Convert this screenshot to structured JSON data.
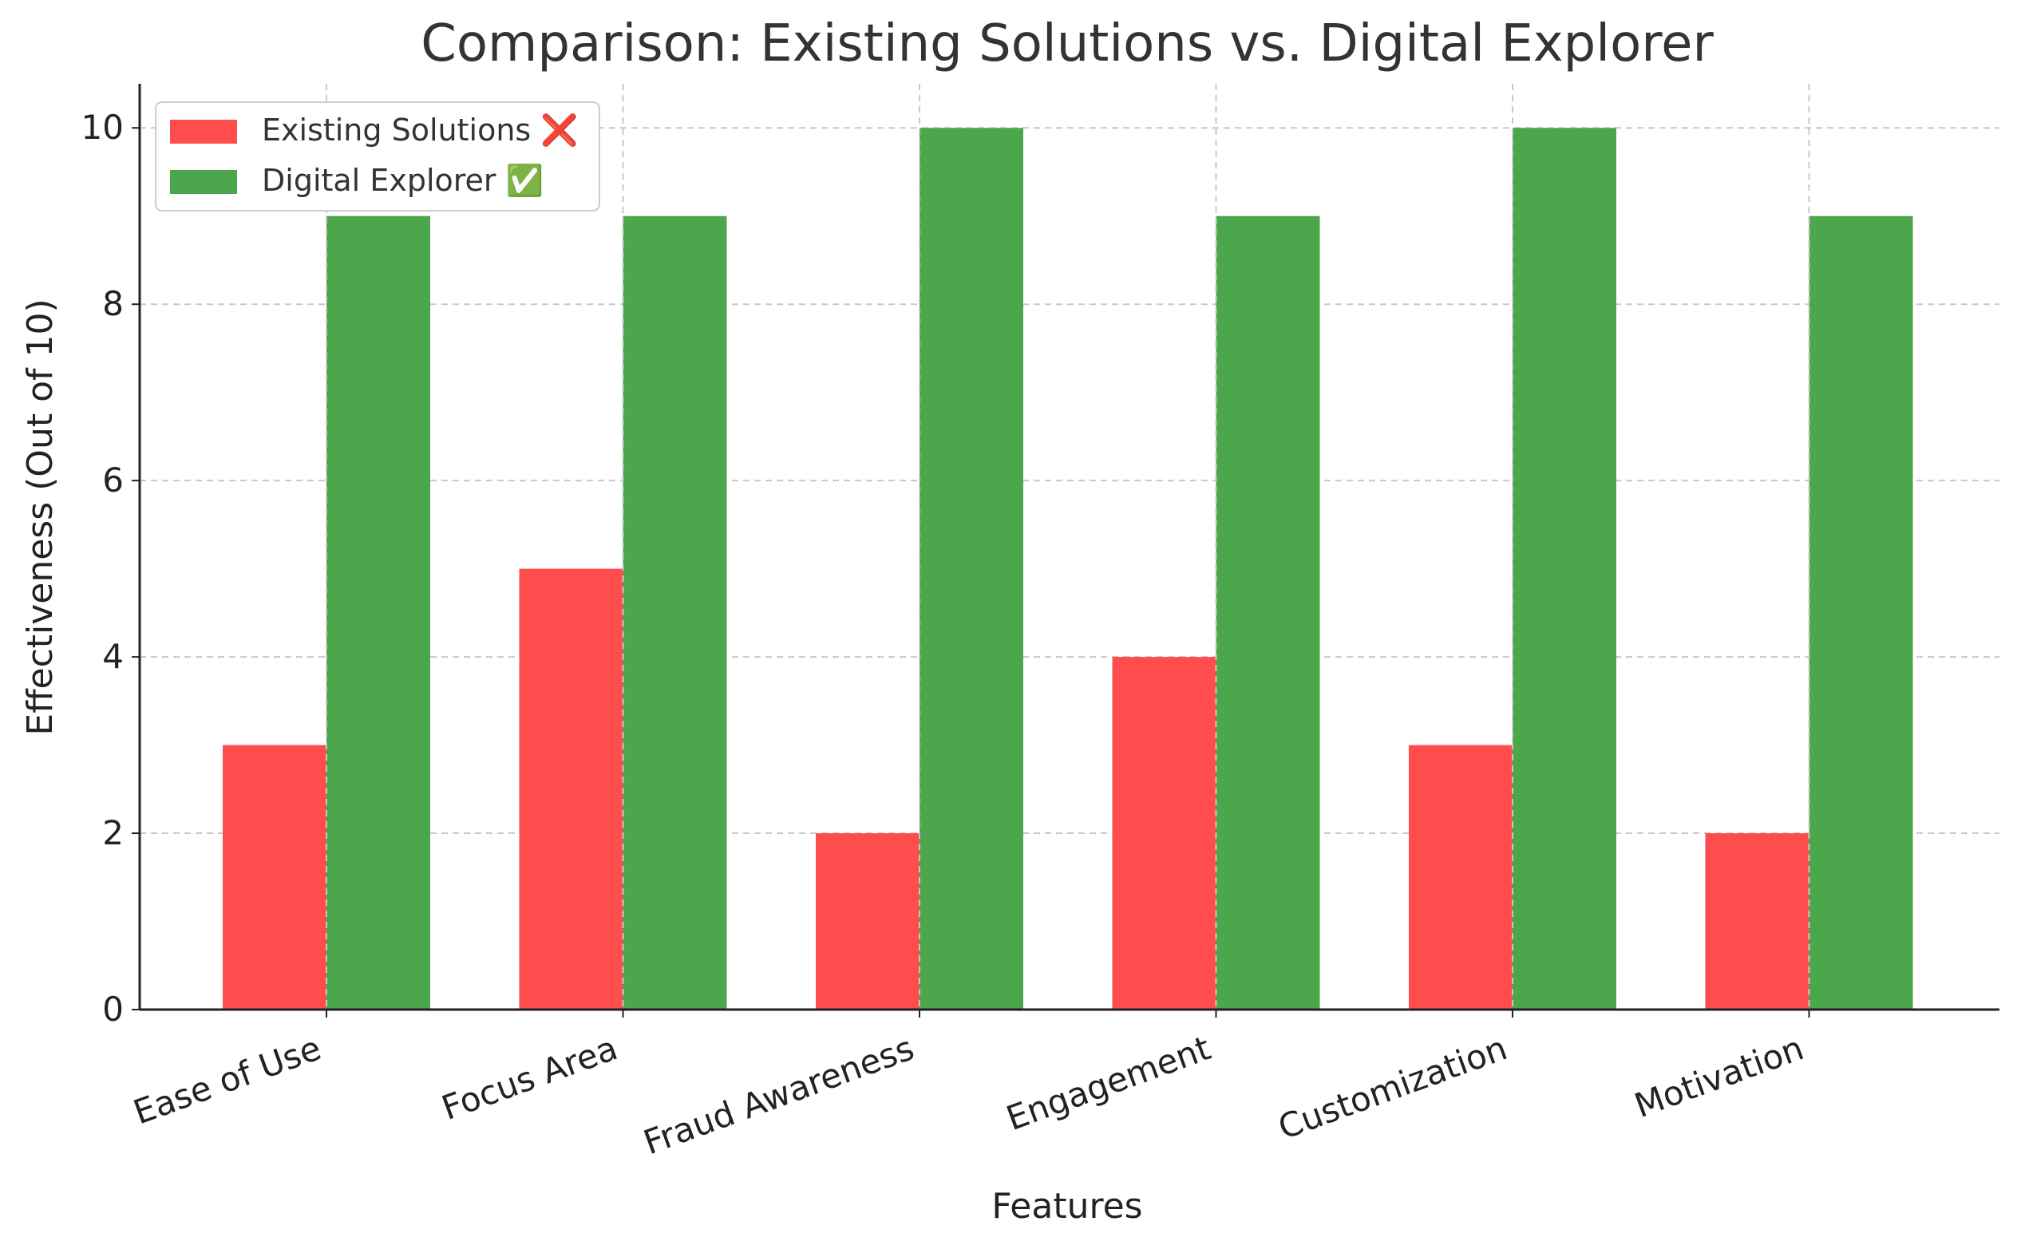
{
  "chart_data": {
    "type": "bar",
    "title": "Comparison: Existing Solutions vs. Digital Explorer",
    "xlabel": "Features",
    "ylabel": "Effectiveness (Out of 10)",
    "categories": [
      "Ease of Use",
      "Focus Area",
      "Fraud Awareness",
      "Engagement",
      "Customization",
      "Motivation"
    ],
    "series": [
      {
        "name": "Existing Solutions ❌",
        "color": "#ff4d4d",
        "values": [
          3,
          5,
          2,
          4,
          3,
          2
        ]
      },
      {
        "name": "Digital Explorer ✅",
        "color": "#4ca64c",
        "values": [
          9,
          9,
          10,
          9,
          10,
          9
        ]
      }
    ],
    "ylim": [
      0,
      10.5
    ],
    "yticks": [
      0,
      2,
      4,
      6,
      8,
      10
    ],
    "grid": true,
    "legend_position": "top-left"
  }
}
